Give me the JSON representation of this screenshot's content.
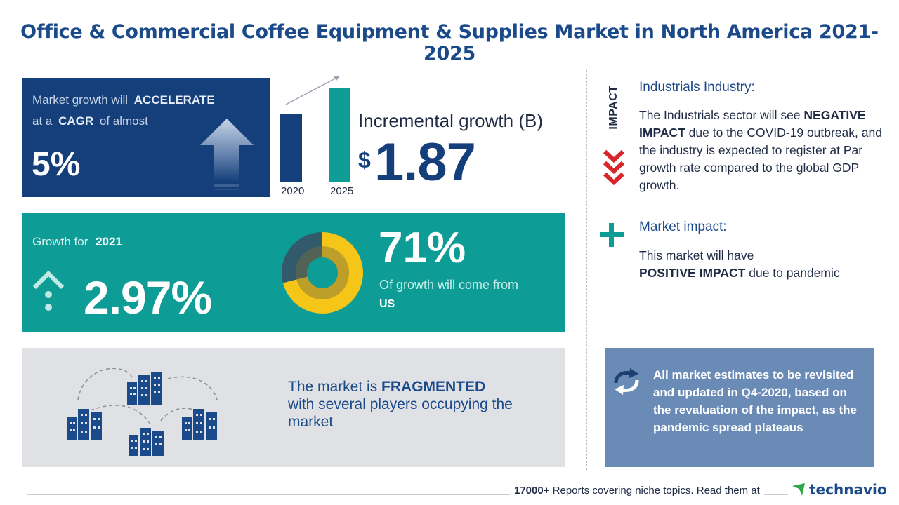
{
  "title": "Office & Commercial Coffee Equipment & Supplies Market in North America 2021-2025",
  "cagr": {
    "line1_prefix": "Market growth will",
    "line1_emphasis": "ACCELERATE",
    "line2_prefix": "at a",
    "line2_emphasis": "CAGR",
    "line2_suffix": "of almost",
    "value": "5%"
  },
  "incremental": {
    "title": "Incremental growth (B)",
    "currency": "$",
    "value": "1.87",
    "bar_years": [
      "2020",
      "2025"
    ]
  },
  "growth": {
    "label": "Growth for",
    "year": "2021",
    "value": "2.97%"
  },
  "geography": {
    "percent": "71%",
    "share": 0.71,
    "text": "Of growth will come from",
    "region": "US"
  },
  "fragmented": {
    "prefix": "The market is",
    "emphasis": "FRAGMENTED",
    "suffix": "with several players occupying the market"
  },
  "impact": {
    "label": "IMPACT",
    "industry_title": "Industrials Industry:",
    "industry_body_1": "The Industrials sector will see",
    "industry_emphasis": "NEGATIVE IMPACT",
    "industry_body_2": "due to the COVID-19 outbreak, and the industry is expected to register at Par growth rate compared to the global GDP growth.",
    "market_title": "Market impact:",
    "market_body_1": "This market will have",
    "market_emphasis": "POSITIVE IMPACT",
    "market_body_2": "due to pandemic"
  },
  "note": {
    "text": "All market estimates to be revisited and updated in Q4-2020, based on the revaluation of the impact, as the pandemic spread plateaus"
  },
  "footer": {
    "count": "17000+",
    "text": "Reports covering niche topics. Read them at",
    "brand": "technavio"
  },
  "colors": {
    "navy": "#143f7a",
    "teal": "#0e9c96",
    "yellow": "#f5c518",
    "red": "#d9262b",
    "note_blue": "#6a8bb5"
  }
}
